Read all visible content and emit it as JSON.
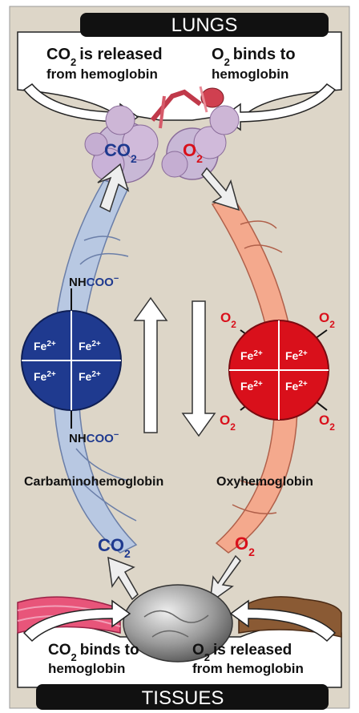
{
  "header": {
    "title": "LUNGS"
  },
  "footer": {
    "title": "TISSUES"
  },
  "lungs": {
    "co2_released_line1": "is released",
    "co2_released_line2": "from hemoglobin",
    "o2_binds_line1": "binds to",
    "o2_binds_line2": "hemoglobin",
    "co2_label": "CO",
    "o2_label": "O",
    "sub2": "2"
  },
  "tissues": {
    "co2_binds_line1": "binds to",
    "co2_binds_line2": "hemoglobin",
    "o2_released_line1": "is released",
    "o2_released_line2": "from hemoglobin",
    "co2_label": "CO",
    "o2_label": "O",
    "sub2": "2"
  },
  "molecules": {
    "carbamino": {
      "name": "Carbaminohemoglobin",
      "group_nh": "NH",
      "group_coo": "COO",
      "charge": "−",
      "iron": "Fe",
      "iron_charge": "2+"
    },
    "oxy": {
      "name": "Oxyhemoglobin",
      "oxygen": "O",
      "iron": "Fe",
      "iron_charge": "2+"
    }
  },
  "colors": {
    "background": "#ddd6c8",
    "blue_dark": "#1f3a8f",
    "blue_light": "#b8c8e2",
    "red": "#d9101b",
    "salmon": "#f4a98d",
    "banner": "#111111"
  }
}
